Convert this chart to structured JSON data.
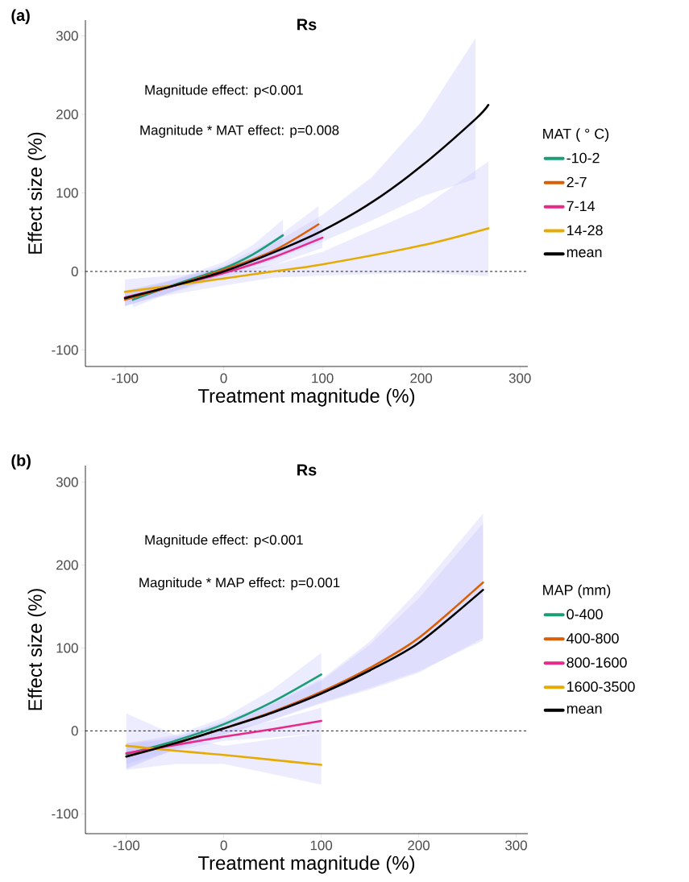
{
  "chart_data": [
    {
      "type": "line",
      "title": "Rs",
      "xlabel": "Treatment magnitude (%)",
      "ylabel": "Effect size (%)",
      "legend_title": "MAT ( ° C)",
      "annotations": [
        "(a)",
        "Magnitude effect: p<0.001",
        "Magnitude * MAT effect: p=0.008"
      ],
      "xlim": [
        -140,
        308
      ],
      "ylim": [
        -121,
        320
      ],
      "xticks": [
        -100,
        0,
        100,
        200,
        300
      ],
      "yticks": [
        -100,
        0,
        100,
        200,
        300
      ],
      "legend": "right",
      "ref_lines": [
        {
          "axis": "y",
          "value": 0,
          "line_style": "dashed"
        }
      ],
      "series": [
        {
          "name": "-10-2",
          "color": "#1b9e77",
          "x": [
            -92,
            -50,
            0,
            30,
            60
          ],
          "values": [
            -36,
            -17,
            4,
            22,
            46
          ],
          "lower": [
            -46,
            -25,
            -4,
            10,
            28
          ],
          "upper": [
            -28,
            -10,
            12,
            34,
            66
          ]
        },
        {
          "name": "2-7",
          "color": "#d95f02",
          "x": [
            -100,
            -50,
            0,
            50,
            96
          ],
          "values": [
            -36,
            -18,
            2,
            26,
            60
          ],
          "lower": [
            -44,
            -25,
            -4,
            14,
            42
          ],
          "upper": [
            -28,
            -11,
            8,
            40,
            83
          ]
        },
        {
          "name": "7-14",
          "color": "#e7298a",
          "x": [
            -100,
            -50,
            0,
            50,
            100
          ],
          "values": [
            -33,
            -18,
            -2,
            18,
            43
          ],
          "lower": [
            -44,
            -26,
            -8,
            8,
            30
          ],
          "upper": [
            -24,
            -11,
            4,
            28,
            60
          ]
        },
        {
          "name": "14-28",
          "color": "#e6ab02",
          "x": [
            -100,
            0,
            50,
            100,
            200,
            268
          ],
          "values": [
            -26,
            -9,
            0,
            9,
            33,
            55
          ],
          "lower": [
            -40,
            -18,
            -8,
            -5,
            -2,
            -6
          ],
          "upper": [
            -10,
            0,
            8,
            25,
            80,
            140
          ]
        },
        {
          "name": "mean",
          "color": "#000000",
          "x": [
            -100,
            -50,
            0,
            50,
            100,
            150,
            200,
            255,
            268
          ],
          "values": [
            -34,
            -18,
            0,
            24,
            52,
            88,
            134,
            194,
            212
          ],
          "lower": [
            -44,
            -24,
            -6,
            15,
            38,
            65,
            95,
            118,
            null
          ],
          "upper": [
            -25,
            -10,
            6,
            35,
            72,
            120,
            190,
            297,
            null
          ]
        }
      ]
    },
    {
      "type": "line",
      "title": "Rs",
      "xlabel": "Treatment magnitude (%)",
      "ylabel": "Effect size (%)",
      "legend_title": "MAP (mm)",
      "annotations": [
        "(b)",
        "Magnitude effect: p<0.001",
        "Magnitude * MAP effect: p=0.001"
      ],
      "xlim": [
        -142,
        312
      ],
      "ylim": [
        -124,
        320
      ],
      "xticks": [
        -100,
        0,
        100,
        200,
        300
      ],
      "yticks": [
        -100,
        0,
        100,
        200,
        300
      ],
      "legend": "right",
      "ref_lines": [
        {
          "axis": "y",
          "value": 0,
          "line_style": "dashed"
        }
      ],
      "series": [
        {
          "name": "0-400",
          "color": "#1b9e77",
          "x": [
            -100,
            -50,
            0,
            50,
            100
          ],
          "values": [
            -28,
            -12,
            8,
            35,
            68
          ],
          "lower": [
            -40,
            -20,
            0,
            22,
            45
          ],
          "upper": [
            -15,
            -5,
            16,
            50,
            94
          ]
        },
        {
          "name": "400-800",
          "color": "#d95f02",
          "x": [
            -100,
            -50,
            0,
            50,
            100,
            150,
            200,
            266
          ],
          "values": [
            -31,
            -15,
            3,
            23,
            47,
            76,
            112,
            179
          ],
          "lower": [
            -45,
            -22,
            -5,
            14,
            34,
            52,
            72,
            109
          ],
          "upper": [
            -15,
            -8,
            12,
            34,
            62,
            108,
            170,
            262
          ]
        },
        {
          "name": "800-1600",
          "color": "#e7298a",
          "x": [
            -100,
            -50,
            0,
            50,
            100
          ],
          "values": [
            -27,
            -17,
            -7,
            2,
            12
          ],
          "lower": [
            -40,
            -24,
            -12,
            -8,
            -3
          ],
          "upper": [
            -15,
            -10,
            0,
            12,
            28
          ]
        },
        {
          "name": "1600-3500",
          "color": "#e6ab02",
          "x": [
            -100,
            -50,
            0,
            50,
            100
          ],
          "values": [
            -18,
            -24,
            -29,
            -35,
            -41
          ],
          "lower": [
            -47,
            -40,
            -40,
            -52,
            -65
          ],
          "upper": [
            21,
            -5,
            -18,
            -10,
            -3
          ]
        },
        {
          "name": "mean",
          "color": "#000000",
          "x": [
            -100,
            -50,
            0,
            50,
            100,
            150,
            200,
            266
          ],
          "values": [
            -31,
            -15,
            3,
            22,
            45,
            73,
            106,
            170
          ],
          "lower": [
            -46,
            -22,
            -4,
            13,
            33,
            50,
            70,
            112
          ],
          "upper": [
            -18,
            -8,
            10,
            32,
            60,
            104,
            160,
            250
          ]
        }
      ]
    }
  ]
}
